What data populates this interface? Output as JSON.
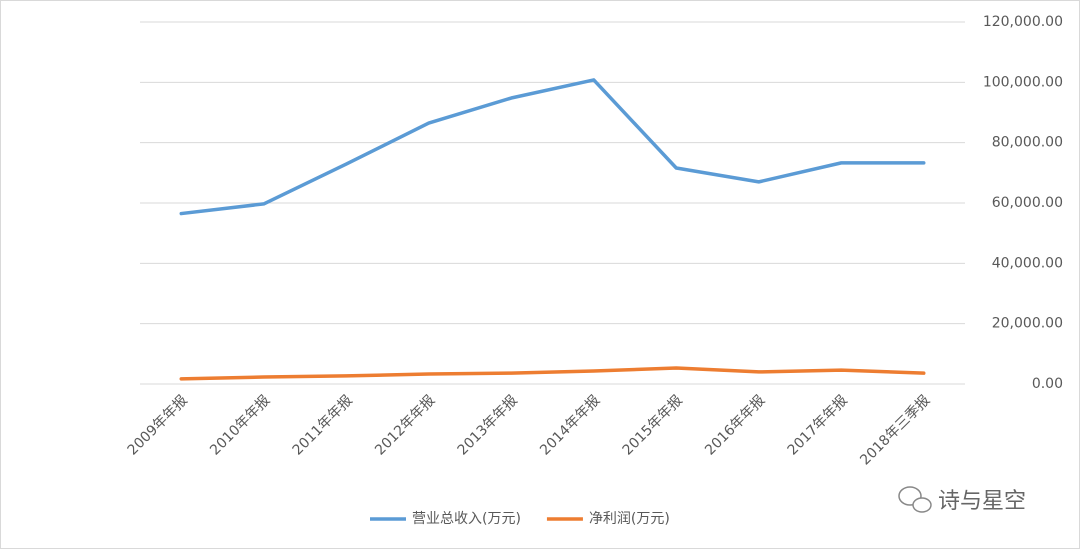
{
  "chart_data": {
    "type": "line",
    "categories": [
      "2009年年报",
      "2010年年报",
      "2011年年报",
      "2012年年报",
      "2013年年报",
      "2014年年报",
      "2015年年报",
      "2016年年报",
      "2017年年报",
      "2018年三季报"
    ],
    "series": [
      {
        "name": "营业总收入(万元)",
        "color": "#5b9bd5",
        "values": [
          56500,
          59700,
          72900,
          86500,
          94800,
          100800,
          71600,
          67000,
          73300,
          73300
        ]
      },
      {
        "name": "净利润(万元)",
        "color": "#ed7d31",
        "values": [
          1700,
          2300,
          2700,
          3300,
          3600,
          4300,
          5300,
          4000,
          4600,
          3600
        ]
      }
    ],
    "ylim": [
      0,
      120000
    ],
    "yticks": [
      {
        "value": 0,
        "label": "0.00"
      },
      {
        "value": 20000,
        "label": "20,000.00"
      },
      {
        "value": 40000,
        "label": "40,000.00"
      },
      {
        "value": 60000,
        "label": "60,000.00"
      },
      {
        "value": 80000,
        "label": "80,000.00"
      },
      {
        "value": 100000,
        "label": "100,000.00"
      },
      {
        "value": 120000,
        "label": "120,000.00"
      }
    ],
    "grid": true,
    "legend": "bottom"
  },
  "watermark": "诗与星空"
}
